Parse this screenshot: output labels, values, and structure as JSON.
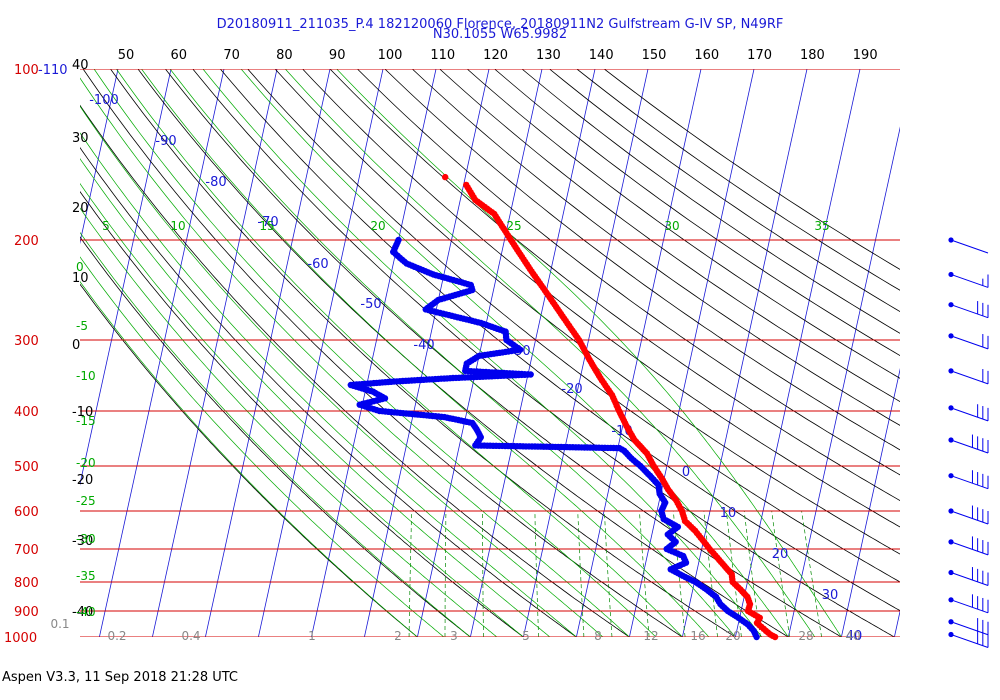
{
  "header": {
    "title_line1": "D20180911_211035_P.4 182120060 Florence, 20180911N2 Gulfstream G-IV SP, N49RF",
    "title_line2": "N30.1055 W65.9982"
  },
  "footer": {
    "text": "Aspen V3.3, 11 Sep 2018  21:28 UTC"
  },
  "colors": {
    "temperature": "#ff0000",
    "dewpoint": "#0000ee",
    "isobar": "#d40000",
    "isotherm": "#1a1ad6",
    "dry_adiabat": "#000000",
    "moist_adiabat": "#00aa00",
    "mixing_ratio": "#008800",
    "wind_barb": "#0000ee"
  },
  "chart_data": {
    "type": "scatter",
    "subtype": "skew-T log-p sounding diagram",
    "ylim": [
      1000,
      100
    ],
    "y_scale": "log",
    "pressure_labels": [
      "100",
      "200",
      "300",
      "400",
      "500",
      "600",
      "700",
      "800",
      "900",
      "1000"
    ],
    "pressure_label_extra": "-110",
    "top_axis_ticks": [
      "50",
      "60",
      "70",
      "80",
      "90",
      "100",
      "110",
      "120",
      "130",
      "140",
      "150",
      "160",
      "170",
      "180",
      "190"
    ],
    "left_dry_adiabat_labels": [
      "40",
      "30",
      "20",
      "10",
      "0",
      "-10",
      "-20",
      "-30",
      "-40"
    ],
    "left_moist_labels": [
      "0",
      "-5",
      "-10",
      "-15",
      "-20",
      "-25",
      "-30",
      "-35",
      "-40"
    ],
    "moist_top_labels": [
      "5",
      "10",
      "15",
      "20",
      "25",
      "30",
      "35"
    ],
    "isotherm_labels": [
      "-100",
      "-90",
      "-80",
      "-70",
      "-60",
      "-50",
      "-40",
      "-30",
      "-20",
      "-10",
      "0",
      "10",
      "20",
      "30",
      "40"
    ],
    "mixing_ratio_labels": [
      "0.1",
      "0.2",
      "0.4",
      "1",
      "2",
      "3",
      "5",
      "8",
      "12",
      "16",
      "20",
      "28",
      "40"
    ],
    "temperature_profile": [
      {
        "p": 1000,
        "t": 27.5
      },
      {
        "p": 990,
        "t": 26.5
      },
      {
        "p": 975,
        "t": 25.5
      },
      {
        "p": 960,
        "t": 24.5
      },
      {
        "p": 945,
        "t": 23.5
      },
      {
        "p": 925,
        "t": 23.8
      },
      {
        "p": 900,
        "t": 21.3
      },
      {
        "p": 875,
        "t": 21.4
      },
      {
        "p": 850,
        "t": 20.6
      },
      {
        "p": 825,
        "t": 19.0
      },
      {
        "p": 800,
        "t": 17.2
      },
      {
        "p": 775,
        "t": 16.7
      },
      {
        "p": 750,
        "t": 15.0
      },
      {
        "p": 725,
        "t": 13.3
      },
      {
        "p": 700,
        "t": 11.5
      },
      {
        "p": 675,
        "t": 9.8
      },
      {
        "p": 650,
        "t": 8.0
      },
      {
        "p": 625,
        "t": 5.7
      },
      {
        "p": 600,
        "t": 4.7
      },
      {
        "p": 575,
        "t": 3.2
      },
      {
        "p": 550,
        "t": 1.2
      },
      {
        "p": 525,
        "t": -0.5
      },
      {
        "p": 500,
        "t": -2.5
      },
      {
        "p": 475,
        "t": -4.3
      },
      {
        "p": 450,
        "t": -7.2
      },
      {
        "p": 425,
        "t": -9.3
      },
      {
        "p": 400,
        "t": -11.3
      },
      {
        "p": 375,
        "t": -13.3
      },
      {
        "p": 350,
        "t": -16.2
      },
      {
        "p": 325,
        "t": -19.0
      },
      {
        "p": 300,
        "t": -21.8
      },
      {
        "p": 275,
        "t": -25.5
      },
      {
        "p": 250,
        "t": -29.5
      },
      {
        "p": 225,
        "t": -34.0
      },
      {
        "p": 200,
        "t": -38.8
      },
      {
        "p": 180,
        "t": -43.0
      },
      {
        "p": 170,
        "t": -47.2
      },
      {
        "p": 160,
        "t": -49.5
      }
    ],
    "temperature_isolated_point": {
      "p": 155,
      "t": -53.8
    },
    "dewpoint_profile": [
      {
        "p": 1000,
        "t": 24.0
      },
      {
        "p": 975,
        "t": 23.2
      },
      {
        "p": 950,
        "t": 21.8
      },
      {
        "p": 925,
        "t": 19.8
      },
      {
        "p": 900,
        "t": 17.5
      },
      {
        "p": 875,
        "t": 15.8
      },
      {
        "p": 850,
        "t": 14.7
      },
      {
        "p": 825,
        "t": 12.6
      },
      {
        "p": 800,
        "t": 10.2
      },
      {
        "p": 780,
        "t": 7.5
      },
      {
        "p": 760,
        "t": 5.0
      },
      {
        "p": 740,
        "t": 7.6
      },
      {
        "p": 720,
        "t": 6.8
      },
      {
        "p": 700,
        "t": 3.4
      },
      {
        "p": 680,
        "t": 4.8
      },
      {
        "p": 660,
        "t": 3.0
      },
      {
        "p": 640,
        "t": 4.6
      },
      {
        "p": 620,
        "t": 1.6
      },
      {
        "p": 600,
        "t": 0.8
      },
      {
        "p": 580,
        "t": 1.2
      },
      {
        "p": 560,
        "t": -0.2
      },
      {
        "p": 540,
        "t": -0.8
      },
      {
        "p": 520,
        "t": -2.8
      },
      {
        "p": 500,
        "t": -5.0
      },
      {
        "p": 485,
        "t": -7.0
      },
      {
        "p": 470,
        "t": -8.7
      },
      {
        "p": 465,
        "t": -9.7
      },
      {
        "p": 462,
        "t": -25.7
      },
      {
        "p": 460,
        "t": -37.0
      },
      {
        "p": 445,
        "t": -36.3
      },
      {
        "p": 430,
        "t": -37.5
      },
      {
        "p": 420,
        "t": -38.5
      },
      {
        "p": 410,
        "t": -44.0
      },
      {
        "p": 400,
        "t": -56.5
      },
      {
        "p": 390,
        "t": -60.5
      },
      {
        "p": 380,
        "t": -56.0
      },
      {
        "p": 370,
        "t": -58.5
      },
      {
        "p": 360,
        "t": -63.0
      },
      {
        "p": 355,
        "t": -55.0
      },
      {
        "p": 350,
        "t": -44.0
      },
      {
        "p": 345,
        "t": -29.5
      },
      {
        "p": 340,
        "t": -42.0
      },
      {
        "p": 330,
        "t": -42.0
      },
      {
        "p": 320,
        "t": -40.0
      },
      {
        "p": 312,
        "t": -32.5
      },
      {
        "p": 300,
        "t": -35.5
      },
      {
        "p": 290,
        "t": -36.0
      },
      {
        "p": 280,
        "t": -41.0
      },
      {
        "p": 265,
        "t": -52.0
      },
      {
        "p": 255,
        "t": -50.0
      },
      {
        "p": 245,
        "t": -44.0
      },
      {
        "p": 240,
        "t": -44.5
      },
      {
        "p": 230,
        "t": -52.0
      },
      {
        "p": 220,
        "t": -57.5
      },
      {
        "p": 210,
        "t": -60.5
      },
      {
        "p": 200,
        "t": -60.0
      }
    ],
    "wind_barbs": [
      {
        "p": 200,
        "flags": 0,
        "full": 0,
        "half": 0
      },
      {
        "p": 230,
        "flags": 0,
        "full": 1,
        "half": 1
      },
      {
        "p": 260,
        "flags": 0,
        "full": 3,
        "half": 0
      },
      {
        "p": 295,
        "flags": 0,
        "full": 2,
        "half": 0
      },
      {
        "p": 340,
        "flags": 0,
        "full": 2,
        "half": 0
      },
      {
        "p": 395,
        "flags": 0,
        "full": 3,
        "half": 0
      },
      {
        "p": 450,
        "flags": 0,
        "full": 4,
        "half": 0
      },
      {
        "p": 520,
        "flags": 0,
        "full": 4,
        "half": 0
      },
      {
        "p": 600,
        "flags": 0,
        "full": 4,
        "half": 0
      },
      {
        "p": 680,
        "flags": 0,
        "full": 4,
        "half": 0
      },
      {
        "p": 770,
        "flags": 0,
        "full": 4,
        "half": 0
      },
      {
        "p": 860,
        "flags": 0,
        "full": 4,
        "half": 0
      },
      {
        "p": 940,
        "flags": 0,
        "full": 3,
        "half": 0
      },
      {
        "p": 990,
        "flags": 0,
        "full": 3,
        "half": 0
      }
    ]
  }
}
